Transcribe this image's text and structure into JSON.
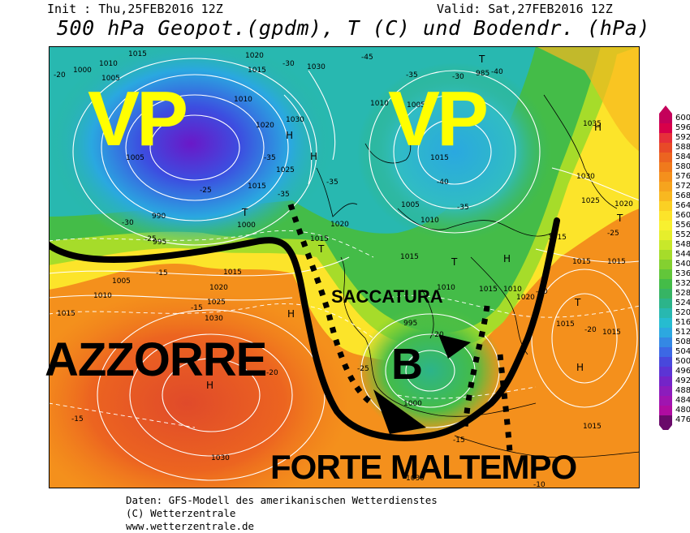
{
  "header": {
    "init": "Init : Thu,25FEB2016 12Z",
    "valid": "Valid: Sat,27FEB2016 12Z",
    "title": "500 hPa Geopot.(gpdm), T (C) und Bodendr. (hPa)"
  },
  "annotations": {
    "vp_left": "VP",
    "vp_right": "VP",
    "azzorre": "AZZORRE",
    "saccatura": "SACCATURA",
    "low_center": "B",
    "forte_maltempo": "FORTE MALTEMPO"
  },
  "footer": {
    "line1": "Daten: GFS-Modell des amerikanischen Wetterdienstes",
    "line2": "(C) Wetterzentrale",
    "line3": "www.wetterzentrale.de"
  },
  "colorbar": {
    "values": [
      "600",
      "596",
      "592",
      "588",
      "584",
      "580",
      "576",
      "572",
      "568",
      "564",
      "560",
      "556",
      "552",
      "548",
      "544",
      "540",
      "536",
      "532",
      "528",
      "524",
      "520",
      "516",
      "512",
      "508",
      "504",
      "500",
      "496",
      "492",
      "488",
      "484",
      "480",
      "476"
    ],
    "colors": [
      "#c4005a",
      "#d8004a",
      "#e6303a",
      "#e84a28",
      "#ec6420",
      "#f07a1c",
      "#f4901c",
      "#f6a41e",
      "#f8b820",
      "#fad024",
      "#fce42a",
      "#f8f030",
      "#e6ee2c",
      "#c8e82a",
      "#a6dc2a",
      "#84d030",
      "#62c63a",
      "#44bc48",
      "#36b464",
      "#2cb48a",
      "#28b8b0",
      "#26bcd0",
      "#2ca8e0",
      "#3488e4",
      "#3c68e4",
      "#4848dc",
      "#5c34d4",
      "#7424c8",
      "#8c1cbc",
      "#a014b0",
      "#b00ca0",
      "#6a0a6a"
    ]
  },
  "map_labels": {
    "pressure": [
      "1015",
      "1000",
      "1005",
      "1010",
      "1020",
      "1030",
      "1015",
      "1010",
      "1020",
      "1030",
      "1025",
      "1015",
      "1000",
      "990",
      "995",
      "1005",
      "1010",
      "1005",
      "1015",
      "1020",
      "1015",
      "1030",
      "1025",
      "1020",
      "1015",
      "1010",
      "1005",
      "1000",
      "995",
      "1030",
      "1035",
      "1030",
      "1025",
      "1020",
      "1015",
      "1015",
      "1015",
      "1005",
      "1010",
      "1015",
      "1025",
      "1020",
      "1030",
      "1015",
      "1010",
      "1015",
      "1030",
      "1030",
      "1015",
      "1000"
    ],
    "temperature": [
      "-20",
      "-25",
      "-35",
      "-30",
      "-45",
      "-40",
      "-35",
      "-30",
      "-25",
      "-30",
      "-35",
      "-40",
      "-35",
      "-30",
      "-25",
      "-20",
      "-15",
      "-15",
      "-20",
      "-25",
      "-20",
      "-15",
      "-10",
      "-15",
      "-20"
    ],
    "highs": [
      "H",
      "H",
      "H",
      "H",
      "H",
      "H",
      "H"
    ],
    "lows": [
      "T",
      "T",
      "T",
      "T",
      "T",
      "T"
    ]
  }
}
